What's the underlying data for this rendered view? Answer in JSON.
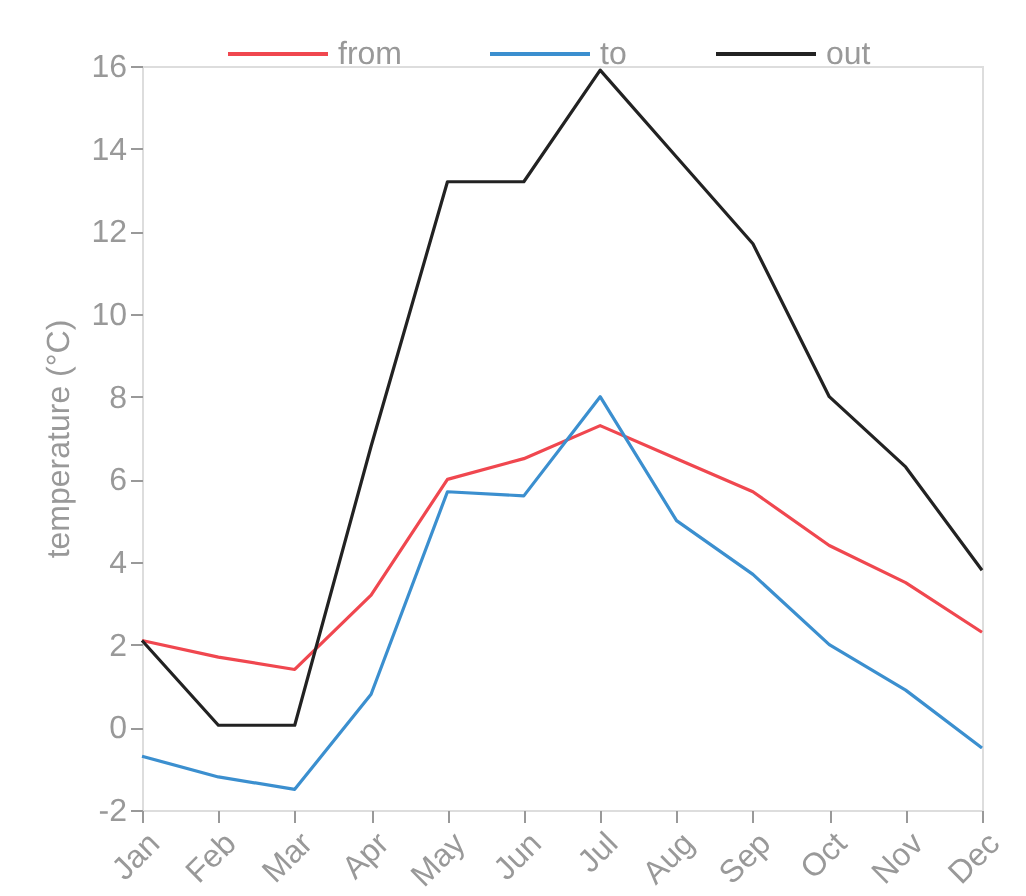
{
  "chart_data": {
    "type": "line",
    "ylabel": "temperature (°C)",
    "categories": [
      "Jan",
      "Feb",
      "Mar",
      "Apr",
      "May",
      "Jun",
      "Jul",
      "Aug",
      "Sep",
      "Oct",
      "Nov",
      "Dec"
    ],
    "series": [
      {
        "name": "from",
        "color": "#f0474f",
        "values": [
          2.1,
          1.7,
          1.4,
          3.2,
          6.0,
          6.5,
          7.3,
          6.5,
          5.7,
          4.4,
          3.5,
          2.3
        ]
      },
      {
        "name": "to",
        "color": "#3b8fcf",
        "values": [
          -0.7,
          -1.2,
          -1.5,
          0.8,
          5.7,
          5.6,
          8.0,
          5.0,
          3.7,
          2.0,
          0.9,
          -0.5
        ]
      },
      {
        "name": "out",
        "color": "#222222",
        "values": [
          2.1,
          0.05,
          0.05,
          6.8,
          13.2,
          13.2,
          15.9,
          13.8,
          11.7,
          8.0,
          6.3,
          3.8
        ]
      }
    ],
    "ylim": [
      -2,
      16
    ],
    "yticks": [
      -2,
      0,
      2,
      4,
      6,
      8,
      10,
      12,
      14,
      16
    ],
    "legend": "top"
  }
}
